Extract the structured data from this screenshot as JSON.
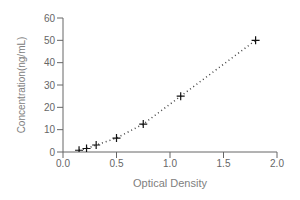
{
  "chart_data": {
    "type": "line",
    "xlabel": "Optical Density",
    "ylabel": "Concentration(ng/mL)",
    "x": [
      0.15,
      0.22,
      0.31,
      0.5,
      0.75,
      1.1,
      1.8
    ],
    "series": [
      {
        "type": "line",
        "line_style": "dotted",
        "color": "#444444",
        "values": [
          0.78,
          1.56,
          3.13,
          6.25,
          12.5,
          25.0,
          50.0
        ]
      },
      {
        "type": "scatter",
        "marker": "+",
        "color": "#111111",
        "values": [
          0.78,
          1.56,
          3.13,
          6.25,
          12.5,
          25.0,
          50.0
        ]
      }
    ],
    "xlim": [
      0,
      2.0
    ],
    "ylim": [
      0,
      60
    ],
    "xticks": [
      {
        "value": 0,
        "label": "0.0"
      },
      0.5,
      {
        "value": 1.0,
        "label": "1.0"
      },
      1.5,
      {
        "value": 2.0,
        "label": "2.0"
      }
    ],
    "yticks": [
      0,
      10,
      20,
      30,
      40,
      50,
      60
    ],
    "grid": false
  }
}
